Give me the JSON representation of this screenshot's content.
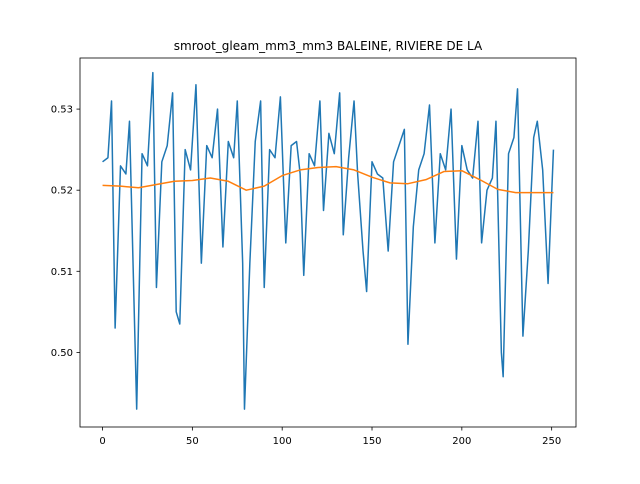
{
  "chart_data": {
    "type": "line",
    "title": "smroot_gleam_mm3_mm3 BALEINE, RIVIERE DE LA",
    "xlim": [
      -12.55,
      263.55
    ],
    "ylim": [
      0.4908,
      0.5363
    ],
    "xticks": [
      0,
      50,
      100,
      150,
      200,
      250
    ],
    "yticks": [
      {
        "value": 0.5,
        "label": "0.50"
      },
      0.51,
      0.52,
      0.53
    ],
    "series": [
      {
        "color": "#1f77b4",
        "x": [
          0,
          3,
          5,
          7,
          10,
          13,
          15,
          19,
          22,
          25,
          28,
          30,
          33,
          36,
          39,
          41,
          43,
          46,
          49,
          52,
          55,
          58,
          61,
          64,
          67,
          70,
          73,
          75,
          78,
          79,
          82,
          85,
          88,
          90,
          93,
          96,
          99,
          102,
          105,
          108,
          110,
          112,
          115,
          118,
          121,
          123,
          126,
          129,
          132,
          134,
          137,
          140,
          142,
          145,
          147,
          150,
          153,
          156,
          159,
          162,
          165,
          168,
          170,
          173,
          176,
          179,
          182,
          185,
          188,
          191,
          194,
          197,
          200,
          203,
          206,
          209,
          211,
          214,
          217,
          219,
          222,
          223,
          226,
          229,
          231,
          234,
          237,
          240,
          242,
          245,
          248,
          251
        ],
        "values": [
          0.5235,
          0.524,
          0.531,
          0.503,
          0.523,
          0.522,
          0.5285,
          0.493,
          0.5245,
          0.523,
          0.5345,
          0.508,
          0.5235,
          0.5255,
          0.532,
          0.505,
          0.5035,
          0.525,
          0.5225,
          0.533,
          0.511,
          0.5255,
          0.524,
          0.53,
          0.513,
          0.526,
          0.524,
          0.531,
          0.511,
          0.493,
          0.511,
          0.526,
          0.531,
          0.508,
          0.525,
          0.524,
          0.5315,
          0.5135,
          0.5255,
          0.526,
          0.522,
          0.5095,
          0.5245,
          0.523,
          0.531,
          0.5175,
          0.527,
          0.5245,
          0.532,
          0.5145,
          0.524,
          0.531,
          0.522,
          0.5125,
          0.5075,
          0.5235,
          0.522,
          0.5215,
          0.5125,
          0.5235,
          0.5255,
          0.5275,
          0.501,
          0.5155,
          0.5225,
          0.5245,
          0.5305,
          0.5135,
          0.5245,
          0.5225,
          0.53,
          0.5115,
          0.5255,
          0.5225,
          0.5215,
          0.5285,
          0.5135,
          0.52,
          0.5215,
          0.5285,
          0.5,
          0.497,
          0.5245,
          0.5265,
          0.5325,
          0.502,
          0.5125,
          0.5265,
          0.5285,
          0.5225,
          0.5085,
          0.525
        ]
      },
      {
        "color": "#ff7f0e",
        "x": [
          0,
          10,
          20,
          30,
          40,
          50,
          60,
          70,
          80,
          90,
          100,
          110,
          120,
          130,
          140,
          150,
          160,
          170,
          180,
          190,
          200,
          210,
          220,
          230,
          240,
          251
        ],
        "values": [
          0.5206,
          0.5205,
          0.5203,
          0.5207,
          0.5211,
          0.5212,
          0.5215,
          0.5211,
          0.52,
          0.5205,
          0.5218,
          0.5225,
          0.5228,
          0.5229,
          0.5225,
          0.5216,
          0.5209,
          0.5208,
          0.5213,
          0.5223,
          0.5224,
          0.5213,
          0.5201,
          0.5197,
          0.5197,
          0.5197
        ]
      }
    ]
  }
}
